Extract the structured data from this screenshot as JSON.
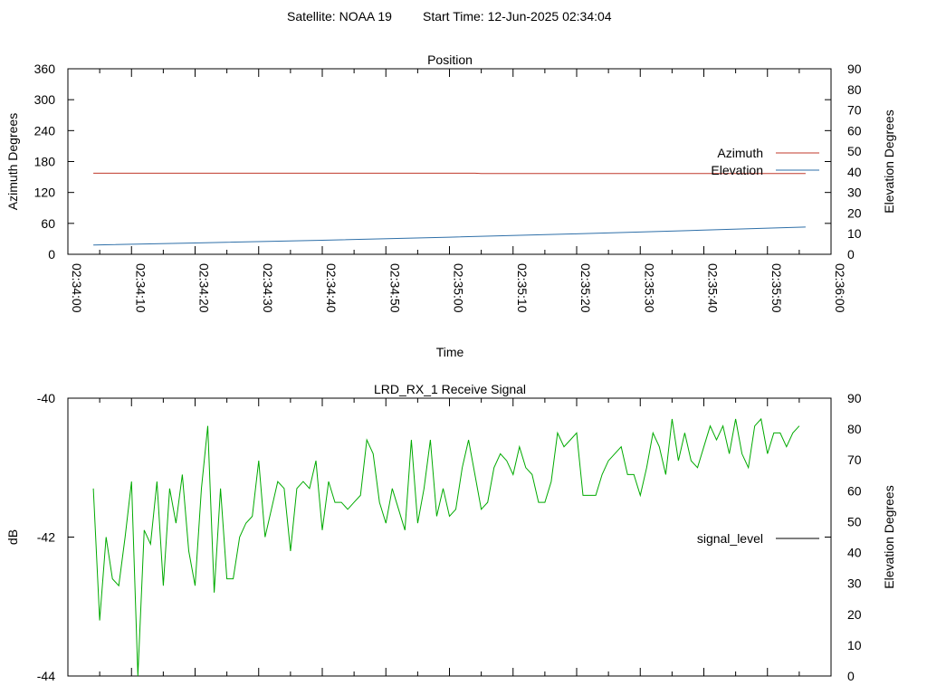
{
  "header": {
    "satellite_label": "Satellite: NOAA 19",
    "start_time_label": "Start Time: 12-Jun-2025 02:34:04"
  },
  "chart_data": [
    {
      "type": "line",
      "title": "Position",
      "xlabel": "Time",
      "ylabel": "Azimuth Degrees",
      "y2label": "Elevation Degrees",
      "x_range": [
        "02:34:00",
        "02:36:00"
      ],
      "x_ticks": [
        "02:34:00",
        "02:34:10",
        "02:34:20",
        "02:34:30",
        "02:34:40",
        "02:34:50",
        "02:35:00",
        "02:35:10",
        "02:35:20",
        "02:35:30",
        "02:35:40",
        "02:35:50",
        "02:36:00"
      ],
      "ylim": [
        0,
        360
      ],
      "y_ticks": [
        0,
        60,
        120,
        180,
        240,
        300,
        360
      ],
      "y2lim": [
        0,
        90
      ],
      "y2_ticks": [
        0,
        10,
        20,
        30,
        40,
        50,
        60,
        70,
        80,
        90
      ],
      "legend_position": "right",
      "grid": false,
      "series": [
        {
          "name": "Azimuth",
          "axis": "y",
          "color": "#c0392b",
          "x": [
            "02:34:04",
            "02:35:04",
            "02:35:05",
            "02:35:56"
          ],
          "values": [
            157.4,
            157.4,
            156.8,
            156.8
          ]
        },
        {
          "name": "Elevation",
          "axis": "y2",
          "color": "#2e6fa8",
          "x": [
            "02:34:04",
            "02:34:20",
            "02:34:40",
            "02:35:00",
            "02:35:20",
            "02:35:40",
            "02:35:56"
          ],
          "values": [
            4.5,
            5.5,
            6.8,
            8.3,
            9.9,
            11.7,
            13.2
          ]
        }
      ]
    },
    {
      "type": "line",
      "title": "LRD_RX_1 Receive Signal",
      "xlabel": "",
      "ylabel": "dB",
      "y2label": "Elevation Degrees",
      "x_range": [
        "02:34:00",
        "02:36:00"
      ],
      "ylim": [
        -44,
        -40
      ],
      "y_ticks": [
        -44,
        -42,
        -40
      ],
      "y2lim": [
        0,
        90
      ],
      "y2_ticks": [
        0,
        10,
        20,
        30,
        40,
        50,
        60,
        70,
        80,
        90
      ],
      "legend_position": "right",
      "grid": false,
      "series": [
        {
          "name": "signal_level",
          "color": "#00aa00",
          "x_start": "02:34:04",
          "x_step_seconds": 1,
          "values": [
            -41.3,
            -43.2,
            -42.0,
            -42.6,
            -42.7,
            -42.0,
            -41.2,
            -44.0,
            -41.9,
            -42.1,
            -41.2,
            -42.7,
            -41.3,
            -41.8,
            -41.1,
            -42.2,
            -42.7,
            -41.3,
            -40.4,
            -42.8,
            -41.3,
            -42.6,
            -42.6,
            -42.0,
            -41.8,
            -41.7,
            -40.9,
            -42.0,
            -41.6,
            -41.2,
            -41.3,
            -42.2,
            -41.3,
            -41.2,
            -41.3,
            -40.9,
            -41.9,
            -41.2,
            -41.5,
            -41.5,
            -41.6,
            -41.5,
            -41.4,
            -40.6,
            -40.8,
            -41.5,
            -41.8,
            -41.3,
            -41.6,
            -41.9,
            -40.6,
            -41.8,
            -41.3,
            -40.6,
            -41.7,
            -41.3,
            -41.7,
            -41.6,
            -41.0,
            -40.6,
            -41.1,
            -41.6,
            -41.5,
            -41.0,
            -40.8,
            -40.9,
            -41.1,
            -40.7,
            -41.0,
            -41.1,
            -41.5,
            -41.5,
            -41.2,
            -40.5,
            -40.7,
            -40.6,
            -40.5,
            -41.4,
            -41.4,
            -41.4,
            -41.1,
            -40.9,
            -40.8,
            -40.7,
            -41.1,
            -41.1,
            -41.4,
            -41.0,
            -40.5,
            -40.7,
            -41.1,
            -40.3,
            -40.9,
            -40.5,
            -40.9,
            -41.0,
            -40.7,
            -40.4,
            -40.6,
            -40.4,
            -40.8,
            -40.3,
            -40.8,
            -41.0,
            -40.4,
            -40.3,
            -40.8,
            -40.5,
            -40.5,
            -40.7,
            -40.5,
            -40.4
          ]
        }
      ]
    }
  ]
}
